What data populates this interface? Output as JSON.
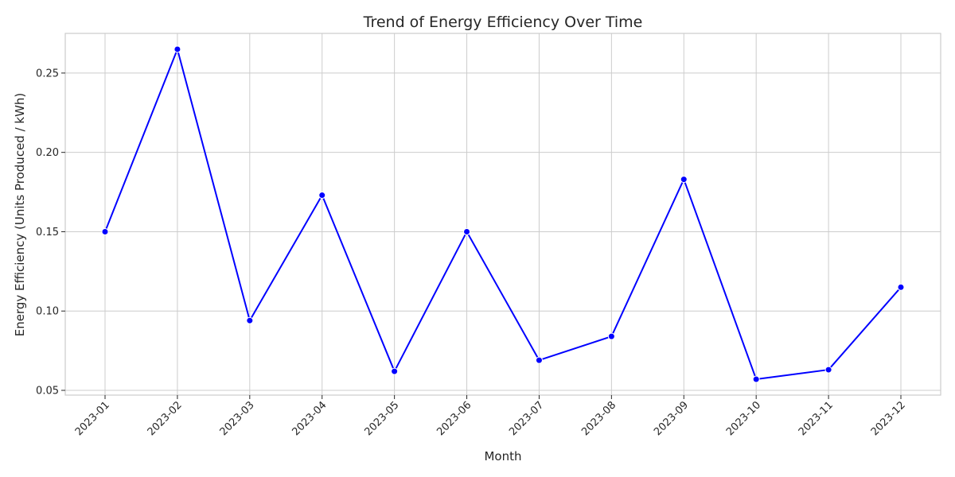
{
  "chart_data": {
    "type": "line",
    "title": "Trend of Energy Efficiency Over Time",
    "xlabel": "Month",
    "ylabel": "Energy Efficiency (Units Produced / kWh)",
    "categories": [
      "2023-01",
      "2023-02",
      "2023-03",
      "2023-04",
      "2023-05",
      "2023-06",
      "2023-07",
      "2023-08",
      "2023-09",
      "2023-10",
      "2023-11",
      "2023-12"
    ],
    "series": [
      {
        "values": [
          0.15,
          0.265,
          0.094,
          0.173,
          0.062,
          0.15,
          0.069,
          0.084,
          0.183,
          0.057,
          0.063,
          0.115
        ],
        "color": "#0000ff",
        "marker": "circle"
      }
    ],
    "ylim": [
      0.047,
      0.275
    ],
    "yticks": [
      "0.05",
      "0.10",
      "0.15",
      "0.20",
      "0.25"
    ],
    "grid": true,
    "legend": "none"
  }
}
